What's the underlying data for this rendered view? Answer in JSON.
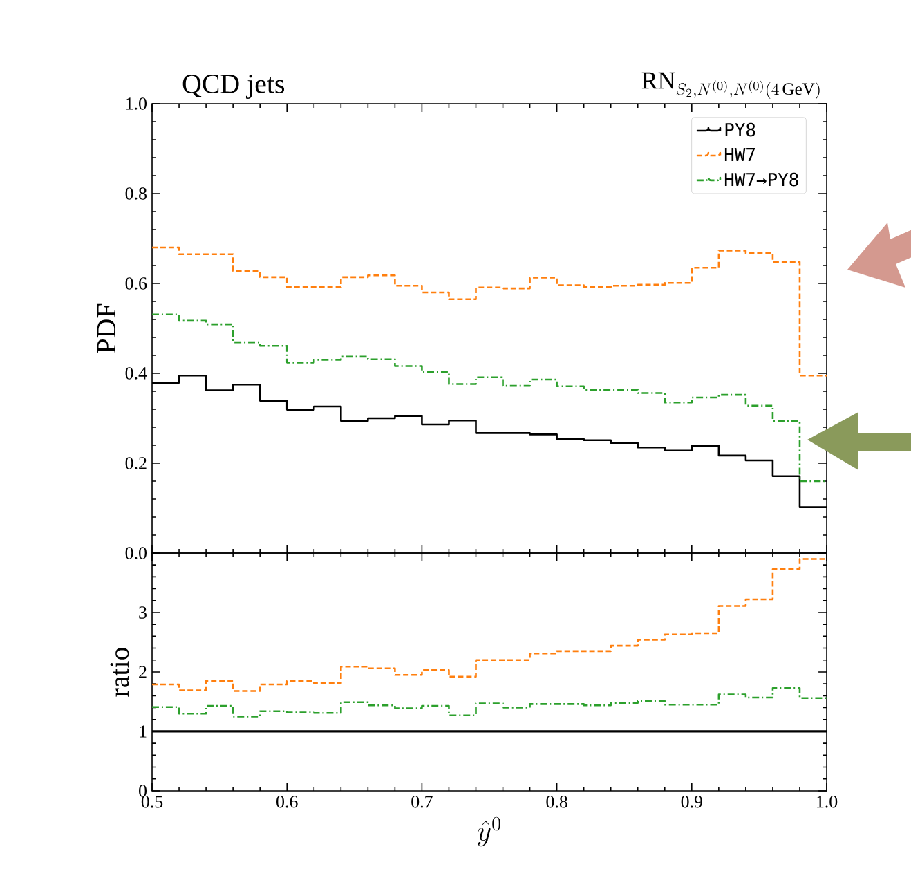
{
  "chart_data": [
    {
      "type": "histogram",
      "title": "QCD jets",
      "subtitle": "\\mathrm{RN}_{S_2,N^{(0)},N^{(0)}(4\\,\\mathrm{GeV})}",
      "ylabel": "PDF",
      "bins": [
        0.5,
        0.52,
        0.54,
        0.56,
        0.58,
        0.6,
        0.62,
        0.64,
        0.66,
        0.68,
        0.7,
        0.72,
        0.74,
        0.76,
        0.78,
        0.8,
        0.82,
        0.84,
        0.86,
        0.88,
        0.9,
        0.92,
        0.94,
        0.96,
        0.98,
        1.0
      ],
      "series": [
        {
          "name": "PY8",
          "color": "#000000",
          "line_style": "solid",
          "values": [
            0.379,
            0.395,
            0.362,
            0.375,
            0.339,
            0.319,
            0.326,
            0.294,
            0.3,
            0.305,
            0.286,
            0.295,
            0.267,
            0.267,
            0.264,
            0.254,
            0.251,
            0.245,
            0.235,
            0.228,
            0.239,
            0.217,
            0.206,
            0.171,
            0.102
          ]
        },
        {
          "name": "HW7",
          "color": "#ff7f0e",
          "line_style": "dashed",
          "values": [
            0.68,
            0.665,
            0.665,
            0.628,
            0.614,
            0.592,
            0.592,
            0.614,
            0.618,
            0.595,
            0.58,
            0.565,
            0.591,
            0.589,
            0.613,
            0.596,
            0.592,
            0.595,
            0.597,
            0.601,
            0.635,
            0.673,
            0.667,
            0.648,
            0.395
          ]
        },
        {
          "name": "HW7→PY8",
          "color": "#2ca02c",
          "line_style": "dashdot",
          "values": [
            0.531,
            0.517,
            0.509,
            0.469,
            0.461,
            0.424,
            0.43,
            0.437,
            0.431,
            0.416,
            0.403,
            0.376,
            0.391,
            0.372,
            0.386,
            0.371,
            0.363,
            0.363,
            0.356,
            0.335,
            0.346,
            0.352,
            0.328,
            0.294,
            0.16
          ]
        }
      ],
      "xlim": [
        0.5,
        1.0
      ],
      "ylim": [
        0,
        1.0
      ],
      "xticks": [
        0.5,
        0.6,
        0.7,
        0.8,
        0.9,
        1.0
      ],
      "yticks": [
        {
          "value": 0,
          "label": "0.0"
        },
        {
          "value": 0.2,
          "label": "0.2"
        },
        {
          "value": 0.4,
          "label": "0.4"
        },
        {
          "value": 0.6,
          "label": "0.6"
        },
        {
          "value": 0.8,
          "label": "0.8"
        },
        {
          "value": 1.0,
          "label": "1.0"
        }
      ],
      "tick_labels": "y",
      "legend": "top right"
    },
    {
      "type": "histogram",
      "xlabel": "\\hat{y}^0",
      "ylabel": "ratio",
      "bins": [
        0.5,
        0.52,
        0.54,
        0.56,
        0.58,
        0.6,
        0.62,
        0.64,
        0.66,
        0.68,
        0.7,
        0.72,
        0.74,
        0.76,
        0.78,
        0.8,
        0.82,
        0.84,
        0.86,
        0.88,
        0.9,
        0.92,
        0.94,
        0.96,
        0.98,
        1.0
      ],
      "series": [
        {
          "color": "#ff7f0e",
          "line_style": "dashed",
          "values": [
            1.79,
            1.69,
            1.85,
            1.68,
            1.79,
            1.85,
            1.81,
            2.09,
            2.06,
            1.95,
            2.03,
            1.92,
            2.2,
            2.2,
            2.31,
            2.35,
            2.35,
            2.44,
            2.54,
            2.63,
            2.65,
            3.11,
            3.22,
            3.73,
            3.9
          ]
        },
        {
          "color": "#2ca02c",
          "line_style": "dashdot",
          "values": [
            1.41,
            1.3,
            1.43,
            1.25,
            1.34,
            1.32,
            1.31,
            1.49,
            1.44,
            1.39,
            1.43,
            1.27,
            1.47,
            1.4,
            1.46,
            1.46,
            1.44,
            1.48,
            1.51,
            1.45,
            1.45,
            1.62,
            1.57,
            1.73,
            1.56
          ]
        }
      ],
      "xlim": [
        0.5,
        1.0
      ],
      "ylim": [
        0,
        4
      ],
      "xticks": [
        0.5,
        0.6,
        0.7,
        0.8,
        0.9,
        {
          "value": 1.0,
          "label": "1.0"
        }
      ],
      "yticks": [
        0,
        1,
        2,
        3,
        {
          "value": 4,
          "label": null
        }
      ],
      "ref_lines": [
        {
          "axis": "y",
          "value": 1,
          "color": "#000000",
          "line_style": "solid"
        }
      ]
    }
  ]
}
